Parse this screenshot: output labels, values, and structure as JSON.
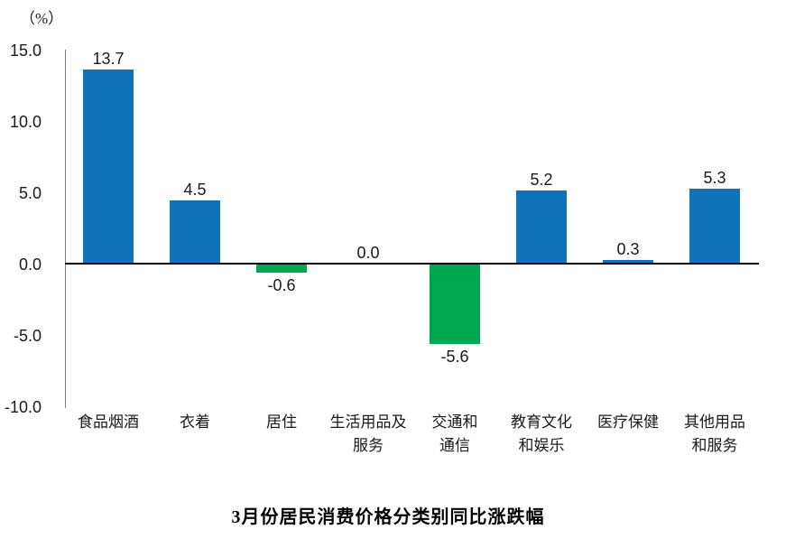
{
  "chart_data": {
    "type": "bar",
    "title": "3月份居民消费价格分类别同比涨跌幅",
    "unit_label": "（%）",
    "categories": [
      "食品烟酒",
      "衣着",
      "居住",
      "生活用品及\n服务",
      "交通和\n通信",
      "教育文化\n和娱乐",
      "医疗保健",
      "其他用品\n和服务"
    ],
    "values": [
      13.7,
      4.5,
      -0.6,
      0.0,
      -5.6,
      5.2,
      0.3,
      5.3
    ],
    "value_labels": [
      "13.7",
      "4.5",
      "-0.6",
      "0.0",
      "-5.6",
      "5.2",
      "0.3",
      "5.3"
    ],
    "xlabel": "",
    "ylabel": "（%）",
    "ylim": [
      -10.0,
      15.0
    ],
    "yticks": [
      15.0,
      10.0,
      5.0,
      0.0,
      -5.0,
      -10.0
    ],
    "ytick_labels": [
      "15.0",
      "10.0",
      "5.0",
      "0.0",
      "-5.0",
      "-10.0"
    ],
    "grid": false,
    "legend": null,
    "colors": {
      "positive_bar": "#1072B9",
      "negative_bar": "#00A950",
      "baseline": "#000000",
      "axis_line": "#7f7f7f",
      "text": "#1a1a1a"
    }
  }
}
